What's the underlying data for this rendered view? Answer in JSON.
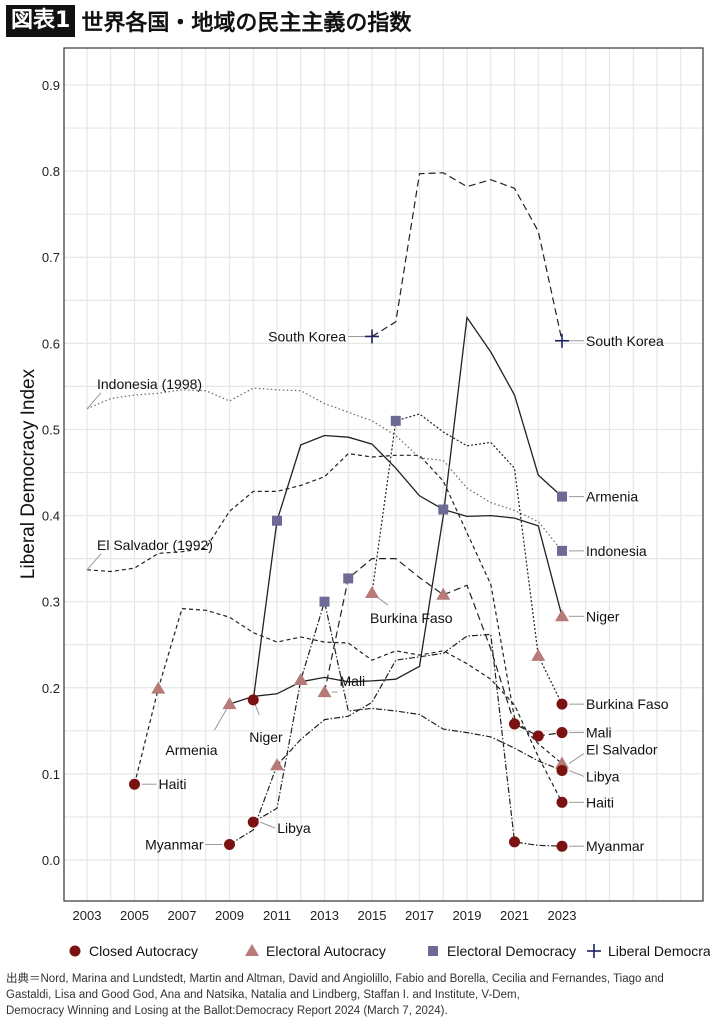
{
  "title": {
    "tag": "図表1",
    "text": "世界各国・地域の民主主義の指数"
  },
  "colors": {
    "closed_autocracy": "#7a1212",
    "electoral_autocracy": "#b77a78",
    "electoral_democracy": "#6e6a96",
    "liberal_democracy": "#1e2060",
    "line": "#222222",
    "grid": "#e6e6e6"
  },
  "chart_data": {
    "type": "line",
    "title": "世界各国・地域の民主主義の指数",
    "xlabel": "",
    "ylabel": "Liberal Democracy Index",
    "xlim": [
      2002.1,
      2029
    ],
    "ylim": [
      -0.045,
      0.945
    ],
    "x_ticks": [
      2003,
      2005,
      2007,
      2009,
      2011,
      2013,
      2015,
      2017,
      2019,
      2021,
      2023
    ],
    "y_ticks": [
      0.0,
      0.1,
      0.2,
      0.3,
      0.4,
      0.5,
      0.6,
      0.7,
      0.8,
      0.9
    ],
    "y_tick_labels": [
      "0.0",
      "0.1",
      "0.2",
      "0.3",
      "0.4",
      "0.5",
      "0.6",
      "0.7",
      "0.8",
      "0.9"
    ],
    "grid": true,
    "legend_position": "bottom",
    "legend": [
      {
        "label": "Closed Autocracy",
        "marker": "circle"
      },
      {
        "label": "Electoral Autocracy",
        "marker": "triangle"
      },
      {
        "label": "Electoral Democracy",
        "marker": "square"
      },
      {
        "label": "Liberal Democracy",
        "marker": "cross"
      }
    ],
    "series": [
      {
        "name": "South Korea",
        "dash": "long",
        "x": [
          2015,
          2016,
          2017,
          2018,
          2019,
          2020,
          2021,
          2022,
          2023
        ],
        "y": [
          0.608,
          0.625,
          0.797,
          0.798,
          0.782,
          0.79,
          0.78,
          0.73,
          0.603
        ],
        "markers": [
          {
            "x": 2015,
            "y": 0.608,
            "type": "cross"
          },
          {
            "x": 2023,
            "y": 0.603,
            "type": "cross"
          }
        ],
        "labels": [
          {
            "text": "South Korea",
            "x": 2015,
            "y": 0.608,
            "side": "left"
          },
          {
            "text": "South Korea",
            "x": 2023,
            "y": 0.603,
            "side": "right"
          }
        ]
      },
      {
        "name": "Armenia",
        "dash": "solid",
        "x": [
          2009,
          2010,
          2011,
          2012,
          2013,
          2014,
          2015,
          2016,
          2017,
          2018,
          2019,
          2020,
          2021,
          2022,
          2023
        ],
        "y": [
          0.181,
          0.19,
          0.193,
          0.207,
          0.212,
          0.207,
          0.208,
          0.21,
          0.225,
          0.4,
          0.63,
          0.59,
          0.54,
          0.447,
          0.422
        ],
        "markers": [
          {
            "x": 2009,
            "y": 0.181,
            "type": "triangle"
          },
          {
            "x": 2023,
            "y": 0.422,
            "type": "square"
          }
        ],
        "labels": [
          {
            "text": "Armenia",
            "x": 2009,
            "y": 0.181,
            "side": "below-left"
          },
          {
            "text": "Armenia",
            "x": 2023,
            "y": 0.422,
            "side": "right"
          }
        ]
      },
      {
        "name": "Niger",
        "dash": "solid",
        "x": [
          2010,
          2011,
          2012,
          2013,
          2014,
          2015,
          2016,
          2017,
          2018,
          2019,
          2020,
          2021,
          2022,
          2023
        ],
        "y": [
          0.186,
          0.394,
          0.482,
          0.493,
          0.491,
          0.483,
          0.455,
          0.423,
          0.407,
          0.399,
          0.4,
          0.397,
          0.388,
          0.283
        ],
        "markers": [
          {
            "x": 2010,
            "y": 0.186,
            "type": "circle"
          },
          {
            "x": 2011,
            "y": 0.394,
            "type": "square"
          },
          {
            "x": 2018,
            "y": 0.407,
            "type": "square"
          },
          {
            "x": 2023,
            "y": 0.283,
            "type": "triangle"
          }
        ],
        "labels": [
          {
            "text": "Niger",
            "x": 2010,
            "y": 0.186,
            "side": "below"
          },
          {
            "text": "Niger",
            "x": 2023,
            "y": 0.283,
            "side": "right"
          }
        ]
      },
      {
        "name": "Indonesia",
        "dash": "dot-light",
        "x": [
          2003,
          2004,
          2005,
          2006,
          2007,
          2008,
          2009,
          2010,
          2011,
          2012,
          2013,
          2014,
          2015,
          2016,
          2017,
          2018,
          2019,
          2020,
          2021,
          2022,
          2023
        ],
        "y": [
          0.524,
          0.536,
          0.54,
          0.542,
          0.546,
          0.545,
          0.533,
          0.548,
          0.546,
          0.545,
          0.53,
          0.52,
          0.51,
          0.493,
          0.467,
          0.464,
          0.432,
          0.415,
          0.406,
          0.393,
          0.359
        ],
        "markers": [
          {
            "x": 2023,
            "y": 0.359,
            "type": "square"
          }
        ],
        "labels": [
          {
            "text": "Indonesia (1998)",
            "x": 2003,
            "y": 0.524,
            "side": "top-note"
          },
          {
            "text": "Indonesia",
            "x": 2023,
            "y": 0.359,
            "side": "right"
          }
        ]
      },
      {
        "name": "El Salvador",
        "dash": "dash",
        "x": [
          2003,
          2004,
          2005,
          2006,
          2007,
          2008,
          2009,
          2010,
          2011,
          2012,
          2013,
          2014,
          2015,
          2016,
          2017,
          2018,
          2019,
          2020,
          2021,
          2022,
          2023
        ],
        "y": [
          0.337,
          0.335,
          0.339,
          0.356,
          0.358,
          0.362,
          0.405,
          0.428,
          0.428,
          0.435,
          0.445,
          0.472,
          0.468,
          0.47,
          0.47,
          0.44,
          0.38,
          0.32,
          0.165,
          0.135,
          0.112
        ],
        "markers": [
          {
            "x": 2023,
            "y": 0.112,
            "type": "triangle"
          }
        ],
        "labels": [
          {
            "text": "El Salvador (1992)",
            "x": 2003,
            "y": 0.337,
            "side": "top-note"
          },
          {
            "text": "El Salvador",
            "x": 2023,
            "y": 0.112,
            "side": "right"
          }
        ]
      },
      {
        "name": "Burkina Faso",
        "dash": "dot",
        "x": [
          2015,
          2016,
          2017,
          2018,
          2019,
          2020,
          2021,
          2022,
          2023
        ],
        "y": [
          0.31,
          0.51,
          0.518,
          0.497,
          0.481,
          0.485,
          0.455,
          0.237,
          0.181
        ],
        "markers": [
          {
            "x": 2015,
            "y": 0.31,
            "type": "triangle"
          },
          {
            "x": 2016,
            "y": 0.51,
            "type": "square"
          },
          {
            "x": 2022,
            "y": 0.237,
            "type": "triangle"
          },
          {
            "x": 2023,
            "y": 0.181,
            "type": "circle"
          }
        ],
        "labels": [
          {
            "text": "Burkina Faso",
            "x": 2015,
            "y": 0.31,
            "side": "below-right"
          },
          {
            "text": "Burkina Faso",
            "x": 2023,
            "y": 0.181,
            "side": "right"
          }
        ]
      },
      {
        "name": "Mali",
        "dash": "long",
        "x": [
          2013,
          2014,
          2015,
          2016,
          2017,
          2018,
          2019,
          2020,
          2021,
          2022,
          2023
        ],
        "y": [
          0.195,
          0.327,
          0.35,
          0.35,
          0.328,
          0.308,
          0.319,
          0.245,
          0.158,
          0.144,
          0.148
        ],
        "markers": [
          {
            "x": 2013,
            "y": 0.195,
            "type": "triangle"
          },
          {
            "x": 2014,
            "y": 0.327,
            "type": "square"
          },
          {
            "x": 2018,
            "y": 0.308,
            "type": "triangle"
          },
          {
            "x": 2021,
            "y": 0.158,
            "type": "circle"
          },
          {
            "x": 2022,
            "y": 0.144,
            "type": "circle"
          },
          {
            "x": 2023,
            "y": 0.148,
            "type": "circle"
          }
        ],
        "labels": [
          {
            "text": "Mali",
            "x": 2013,
            "y": 0.195,
            "side": "right"
          },
          {
            "text": "Mali",
            "x": 2023,
            "y": 0.148,
            "side": "right"
          }
        ]
      },
      {
        "name": "Haiti",
        "dash": "dash",
        "x": [
          2005,
          2006,
          2007,
          2008,
          2009,
          2010,
          2011,
          2012,
          2013,
          2014,
          2015,
          2016,
          2017,
          2018,
          2019,
          2020,
          2021,
          2022,
          2023
        ],
        "y": [
          0.088,
          0.199,
          0.292,
          0.29,
          0.282,
          0.264,
          0.253,
          0.259,
          0.253,
          0.252,
          0.232,
          0.243,
          0.238,
          0.243,
          0.228,
          0.21,
          0.18,
          0.12,
          0.067
        ],
        "markers": [
          {
            "x": 2005,
            "y": 0.088,
            "type": "circle"
          },
          {
            "x": 2006,
            "y": 0.199,
            "type": "triangle"
          },
          {
            "x": 2023,
            "y": 0.067,
            "type": "circle"
          }
        ],
        "labels": [
          {
            "text": "Haiti",
            "x": 2005,
            "y": 0.088,
            "side": "right"
          },
          {
            "text": "Haiti",
            "x": 2023,
            "y": 0.067,
            "side": "right"
          }
        ]
      },
      {
        "name": "Libya",
        "dash": "dashdot",
        "x": [
          2010,
          2011,
          2012,
          2013,
          2014,
          2015,
          2016,
          2017,
          2018,
          2019,
          2020,
          2021,
          2022,
          2023
        ],
        "y": [
          0.044,
          0.06,
          0.209,
          0.3,
          0.173,
          0.176,
          0.173,
          0.169,
          0.152,
          0.148,
          0.143,
          0.13,
          0.115,
          0.104
        ],
        "markers": [
          {
            "x": 2010,
            "y": 0.044,
            "type": "circle"
          },
          {
            "x": 2012,
            "y": 0.209,
            "type": "triangle"
          },
          {
            "x": 2013,
            "y": 0.3,
            "type": "square"
          },
          {
            "x": 2023,
            "y": 0.104,
            "type": "circle"
          }
        ],
        "labels": [
          {
            "text": "Libya",
            "x": 2010,
            "y": 0.044,
            "side": "right"
          },
          {
            "text": "Libya",
            "x": 2023,
            "y": 0.104,
            "side": "right"
          }
        ]
      },
      {
        "name": "Myanmar",
        "dash": "dashdot",
        "x": [
          2009,
          2010,
          2011,
          2012,
          2013,
          2014,
          2015,
          2016,
          2017,
          2018,
          2019,
          2020,
          2021,
          2022,
          2023
        ],
        "y": [
          0.018,
          0.035,
          0.11,
          0.14,
          0.163,
          0.167,
          0.183,
          0.232,
          0.236,
          0.24,
          0.26,
          0.262,
          0.021,
          0.017,
          0.016
        ],
        "markers": [
          {
            "x": 2009,
            "y": 0.018,
            "type": "circle"
          },
          {
            "x": 2011,
            "y": 0.11,
            "type": "triangle"
          },
          {
            "x": 2021,
            "y": 0.021,
            "type": "circle"
          },
          {
            "x": 2023,
            "y": 0.016,
            "type": "circle"
          }
        ],
        "labels": [
          {
            "text": "Myanmar",
            "x": 2009,
            "y": 0.018,
            "side": "left"
          },
          {
            "text": "Myanmar",
            "x": 2023,
            "y": 0.016,
            "side": "right"
          }
        ]
      }
    ]
  },
  "source": [
    "出典＝Nord, Marina and Lundstedt, Martin and Altman, David and Angiolillo, Fabio and Borella, Cecilia and Fernandes, Tiago and",
    "Gastaldi, Lisa and Good God, Ana and Natsika, Natalia and Lindberg, Staffan I. and Institute, V-Dem,",
    "Democracy Winning and Losing at the Ballot:Democracy Report 2024 (March 7, 2024)."
  ]
}
